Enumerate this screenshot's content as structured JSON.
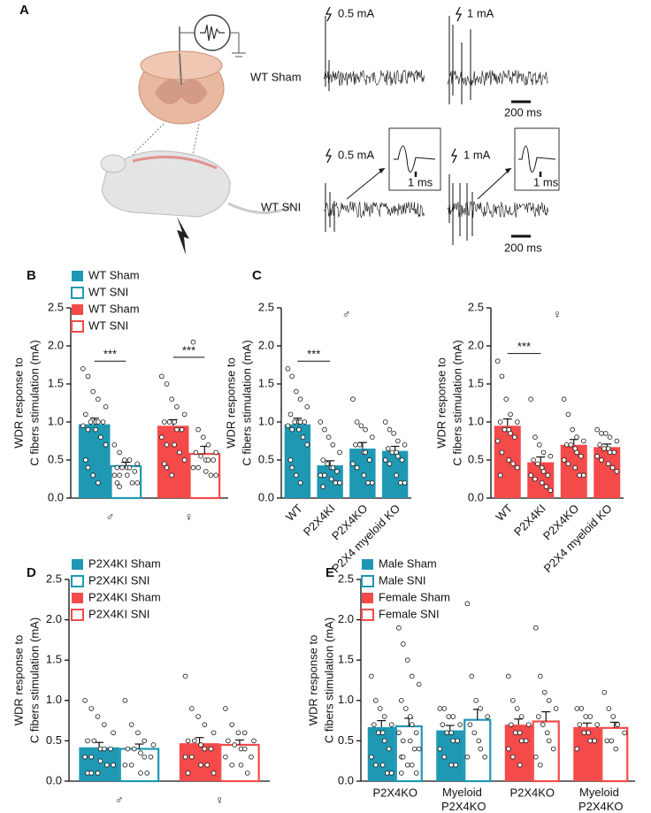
{
  "panel_a": {
    "letter": "A",
    "sham_label": "WT Sham",
    "sni_label": "WT SNI",
    "sham_stim_low": "0.5 mA",
    "sham_stim_high": "1 mA",
    "sni_stim_low": "0.5 mA",
    "sni_stim_high": "1 mA",
    "sham_scale": "200 ms",
    "sni_scale": "200 ms",
    "inset_scale_low": "1 ms",
    "inset_scale_high": "1 ms"
  },
  "chart_data": [
    {
      "type": "bar",
      "panel": "B",
      "ylabel": [
        "WDR response to",
        "C fibers stimulation (mA)"
      ],
      "categories": [
        "♂",
        "♀"
      ],
      "legend": "upper left",
      "annotations": [
        "***",
        "***"
      ],
      "ylim": [
        0,
        2.5
      ],
      "yticks": [
        {
          "value": 0,
          "label": "0.0"
        },
        0.5,
        {
          "value": 1,
          "label": "1.0"
        },
        1.5,
        {
          "value": 2,
          "label": "2.0"
        },
        2.5
      ],
      "series": [
        {
          "name": "WT Sham",
          "color": "#1f98b3",
          "style": "filled",
          "values": [
            0.97,
            null
          ],
          "errors": [
            0.08,
            null
          ],
          "points": [
            [
              1.7,
              1.6,
              1.4,
              1.3,
              1.2,
              1.1,
              1.0,
              1.0,
              1.0,
              1.0,
              0.95,
              0.9,
              0.9,
              0.8,
              0.7,
              0.5,
              0.4,
              0.3,
              0.2
            ],
            null
          ]
        },
        {
          "name": "WT SNI",
          "color": "#1f98b3",
          "style": "outline",
          "values": [
            0.42,
            null
          ],
          "errors": [
            0.05,
            null
          ],
          "points": [
            [
              0.7,
              0.6,
              0.5,
              0.5,
              0.45,
              0.4,
              0.4,
              0.4,
              0.4,
              0.35,
              0.3,
              0.3,
              0.3,
              0.2,
              0.2,
              0.2,
              0.15
            ],
            null
          ]
        },
        {
          "name": "WT Sham",
          "color": "#f44a4a",
          "style": "filled",
          "values": [
            null,
            0.95
          ],
          "errors": [
            null,
            0.08
          ],
          "points": [
            null,
            [
              1.6,
              1.5,
              1.3,
              1.2,
              1.1,
              1.0,
              1.0,
              1.0,
              0.9,
              0.9,
              0.8,
              0.7,
              0.7,
              0.6,
              0.5,
              0.45,
              0.4,
              0.3
            ]
          ]
        },
        {
          "name": "WT SNI",
          "color": "#f44a4a",
          "style": "outline",
          "values": [
            null,
            0.58
          ],
          "errors": [
            null,
            0.1
          ],
          "points": [
            null,
            [
              2.05,
              0.9,
              0.8,
              0.7,
              0.6,
              0.6,
              0.55,
              0.5,
              0.5,
              0.5,
              0.4,
              0.4,
              0.35,
              0.3,
              0.3
            ]
          ]
        }
      ]
    },
    {
      "type": "bar",
      "panel": "C",
      "title": "♂",
      "ylabel": [
        "WDR response to",
        "C fibers stimulation (mA)"
      ],
      "categories": [
        "WT",
        "P2X4KI",
        "P2X4KO",
        "P2X4 myeloid KO"
      ],
      "xtick_rotation": 45,
      "annotations": [
        "***"
      ],
      "ylim": [
        0,
        2.5
      ],
      "yticks": [
        {
          "value": 0,
          "label": "0.0"
        },
        0.5,
        {
          "value": 1,
          "label": "1.0"
        },
        1.5,
        {
          "value": 2,
          "label": "2.0"
        },
        2.5
      ],
      "color": "#1f98b3",
      "style": "filled",
      "values": [
        0.97,
        0.43,
        0.65,
        0.62
      ],
      "errors": [
        0.08,
        0.06,
        0.08,
        0.06
      ],
      "points": [
        [
          1.7,
          1.6,
          1.4,
          1.3,
          1.2,
          1.1,
          1.0,
          1.0,
          1.0,
          1.0,
          0.95,
          0.9,
          0.9,
          0.8,
          0.7,
          0.5,
          0.4,
          0.3,
          0.2
        ],
        [
          1.0,
          0.9,
          0.8,
          0.7,
          0.6,
          0.5,
          0.45,
          0.4,
          0.4,
          0.35,
          0.3,
          0.3,
          0.25,
          0.2,
          0.2,
          0.15
        ],
        [
          1.3,
          1.0,
          0.95,
          0.9,
          0.8,
          0.7,
          0.7,
          0.6,
          0.6,
          0.5,
          0.45,
          0.4,
          0.3,
          0.2,
          0.2
        ],
        [
          1.0,
          0.9,
          0.85,
          0.75,
          0.7,
          0.65,
          0.6,
          0.6,
          0.55,
          0.5,
          0.5,
          0.45,
          0.3,
          0.2,
          0.2
        ]
      ]
    },
    {
      "type": "bar",
      "title": "♀",
      "ylabel": [
        "WDR response to",
        "C fibers stimulation (mA)"
      ],
      "categories": [
        "WT",
        "P2X4KI",
        "P2X4KO",
        "P2X4 myeloid KO"
      ],
      "xtick_rotation": 45,
      "annotations": [
        "***"
      ],
      "ylim": [
        0,
        2.5
      ],
      "yticks": [
        {
          "value": 0,
          "label": "0.0"
        },
        0.5,
        {
          "value": 1,
          "label": "1.0"
        },
        1.5,
        {
          "value": 2,
          "label": "2.0"
        },
        2.5
      ],
      "color": "#f44a4a",
      "style": "filled",
      "values": [
        0.95,
        0.47,
        0.7,
        0.67
      ],
      "errors": [
        0.09,
        0.07,
        0.07,
        0.04
      ],
      "points": [
        [
          1.8,
          1.6,
          1.3,
          1.1,
          1.0,
          1.0,
          0.9,
          0.9,
          0.85,
          0.8,
          0.75,
          0.6,
          0.5,
          0.45,
          0.4,
          0.3
        ],
        [
          1.3,
          0.8,
          0.7,
          0.6,
          0.55,
          0.5,
          0.45,
          0.4,
          0.35,
          0.3,
          0.3,
          0.25,
          0.2,
          0.15,
          0.1
        ],
        [
          1.3,
          1.1,
          0.9,
          0.8,
          0.75,
          0.7,
          0.7,
          0.65,
          0.6,
          0.55,
          0.5,
          0.45,
          0.4,
          0.3,
          0.3
        ],
        [
          0.9,
          0.85,
          0.85,
          0.8,
          0.75,
          0.7,
          0.65,
          0.65,
          0.6,
          0.6,
          0.55,
          0.5,
          0.45,
          0.4,
          0.35
        ]
      ]
    },
    {
      "type": "bar",
      "panel": "D",
      "ylabel": [
        "WDR response to",
        "C fibers stimulation  (mA)"
      ],
      "categories": [
        "♂",
        "♀"
      ],
      "legend": "upper left",
      "ylim": [
        0,
        2.5
      ],
      "yticks": [
        {
          "value": 0,
          "label": "0.0"
        },
        0.5,
        {
          "value": 1,
          "label": "1.0"
        },
        1.5,
        {
          "value": 2,
          "label": "2.0"
        },
        2.5
      ],
      "series": [
        {
          "name": "P2X4KI Sham",
          "color": "#1f98b3",
          "style": "filled",
          "values": [
            0.42,
            null
          ],
          "errors": [
            0.06,
            null
          ],
          "points": [
            [
              1.0,
              0.9,
              0.8,
              0.7,
              0.6,
              0.5,
              0.5,
              0.4,
              0.4,
              0.4,
              0.3,
              0.3,
              0.25,
              0.2,
              0.2,
              0.1,
              0.1,
              0.1
            ],
            null
          ]
        },
        {
          "name": "P2X4KI SNI",
          "color": "#1f98b3",
          "style": "outline",
          "values": [
            0.4,
            null
          ],
          "errors": [
            0.06,
            null
          ],
          "points": [
            [
              1.0,
              0.7,
              0.6,
              0.5,
              0.45,
              0.4,
              0.4,
              0.35,
              0.3,
              0.3,
              0.2,
              0.2,
              0.1,
              0.1
            ],
            null
          ]
        },
        {
          "name": "P2X4KI Sham",
          "color": "#f44a4a",
          "style": "filled",
          "values": [
            null,
            0.47
          ],
          "errors": [
            null,
            0.07
          ],
          "points": [
            null,
            [
              1.3,
              0.9,
              0.8,
              0.7,
              0.6,
              0.5,
              0.5,
              0.45,
              0.4,
              0.4,
              0.3,
              0.3,
              0.2,
              0.2,
              0.1,
              0.1
            ]
          ]
        },
        {
          "name": "P2X4KI SNI",
          "color": "#f44a4a",
          "style": "outline",
          "values": [
            null,
            0.45
          ],
          "errors": [
            null,
            0.06
          ],
          "points": [
            null,
            [
              0.9,
              0.7,
              0.6,
              0.6,
              0.5,
              0.5,
              0.45,
              0.4,
              0.4,
              0.3,
              0.3,
              0.2,
              0.2,
              0.1
            ]
          ]
        }
      ]
    },
    {
      "type": "bar",
      "panel": "E",
      "ylabel": [
        "WDR response to",
        "C fibers stimulation (mA)"
      ],
      "categories": [
        "P2X4KO",
        "Myeloid P2X4KO",
        "P2X4KO",
        "Myeloid P2X4KO"
      ],
      "legend": "upper left",
      "ylim": [
        0,
        2.5
      ],
      "yticks": [
        {
          "value": 0,
          "label": "0.0"
        },
        0.5,
        {
          "value": 1,
          "label": "1.0"
        },
        1.5,
        {
          "value": 2,
          "label": "2.0"
        },
        2.5
      ],
      "series": [
        {
          "name": "Male Sham",
          "color": "#1f98b3",
          "style": "filled",
          "values": [
            0.67,
            0.63,
            null,
            null
          ],
          "errors": [
            0.08,
            0.06,
            null,
            null
          ],
          "points": [
            [
              1.3,
              1.0,
              0.9,
              0.8,
              0.7,
              0.7,
              0.6,
              0.6,
              0.5,
              0.4,
              0.3,
              0.2,
              0.2,
              0.1,
              0.1
            ],
            [
              0.9,
              0.9,
              0.8,
              0.8,
              0.7,
              0.7,
              0.6,
              0.6,
              0.5,
              0.5,
              0.4,
              0.3,
              0.2,
              0.2
            ],
            null,
            null
          ]
        },
        {
          "name": "Male SNI",
          "color": "#1f98b3",
          "style": "outline",
          "values": [
            0.68,
            0.76,
            null,
            null
          ],
          "errors": [
            0.1,
            0.13,
            null,
            null
          ],
          "points": [
            [
              1.9,
              1.7,
              1.5,
              1.3,
              1.2,
              1.0,
              0.9,
              0.8,
              0.7,
              0.6,
              0.6,
              0.5,
              0.5,
              0.4,
              0.4,
              0.3,
              0.3,
              0.2,
              0.2,
              0.1,
              0.1
            ],
            [
              2.2,
              1.3,
              1.0,
              0.9,
              0.8,
              0.7,
              0.6,
              0.5,
              0.4,
              0.3,
              0.3
            ],
            null,
            null
          ]
        },
        {
          "name": "Female Sham",
          "color": "#f44a4a",
          "style": "filled",
          "values": [
            null,
            null,
            0.7,
            0.67
          ],
          "errors": [
            null,
            null,
            0.07,
            0.05
          ],
          "points": [
            null,
            null,
            [
              1.3,
              1.0,
              0.9,
              0.8,
              0.7,
              0.7,
              0.6,
              0.6,
              0.5,
              0.5,
              0.4,
              0.3,
              0.2
            ],
            [
              0.9,
              0.9,
              0.8,
              0.8,
              0.7,
              0.7,
              0.6,
              0.6,
              0.5,
              0.5,
              0.4
            ]
          ]
        },
        {
          "name": "Female SNI",
          "color": "#f44a4a",
          "style": "outline",
          "values": [
            null,
            null,
            0.74,
            0.66
          ],
          "errors": [
            null,
            null,
            0.12,
            0.07
          ],
          "points": [
            null,
            null,
            [
              1.9,
              1.3,
              1.1,
              1.0,
              0.9,
              0.8,
              0.7,
              0.6,
              0.5,
              0.4,
              0.3,
              0.2
            ],
            [
              1.1,
              0.9,
              0.8,
              0.7,
              0.6,
              0.5,
              0.5,
              0.4
            ]
          ]
        }
      ]
    }
  ]
}
